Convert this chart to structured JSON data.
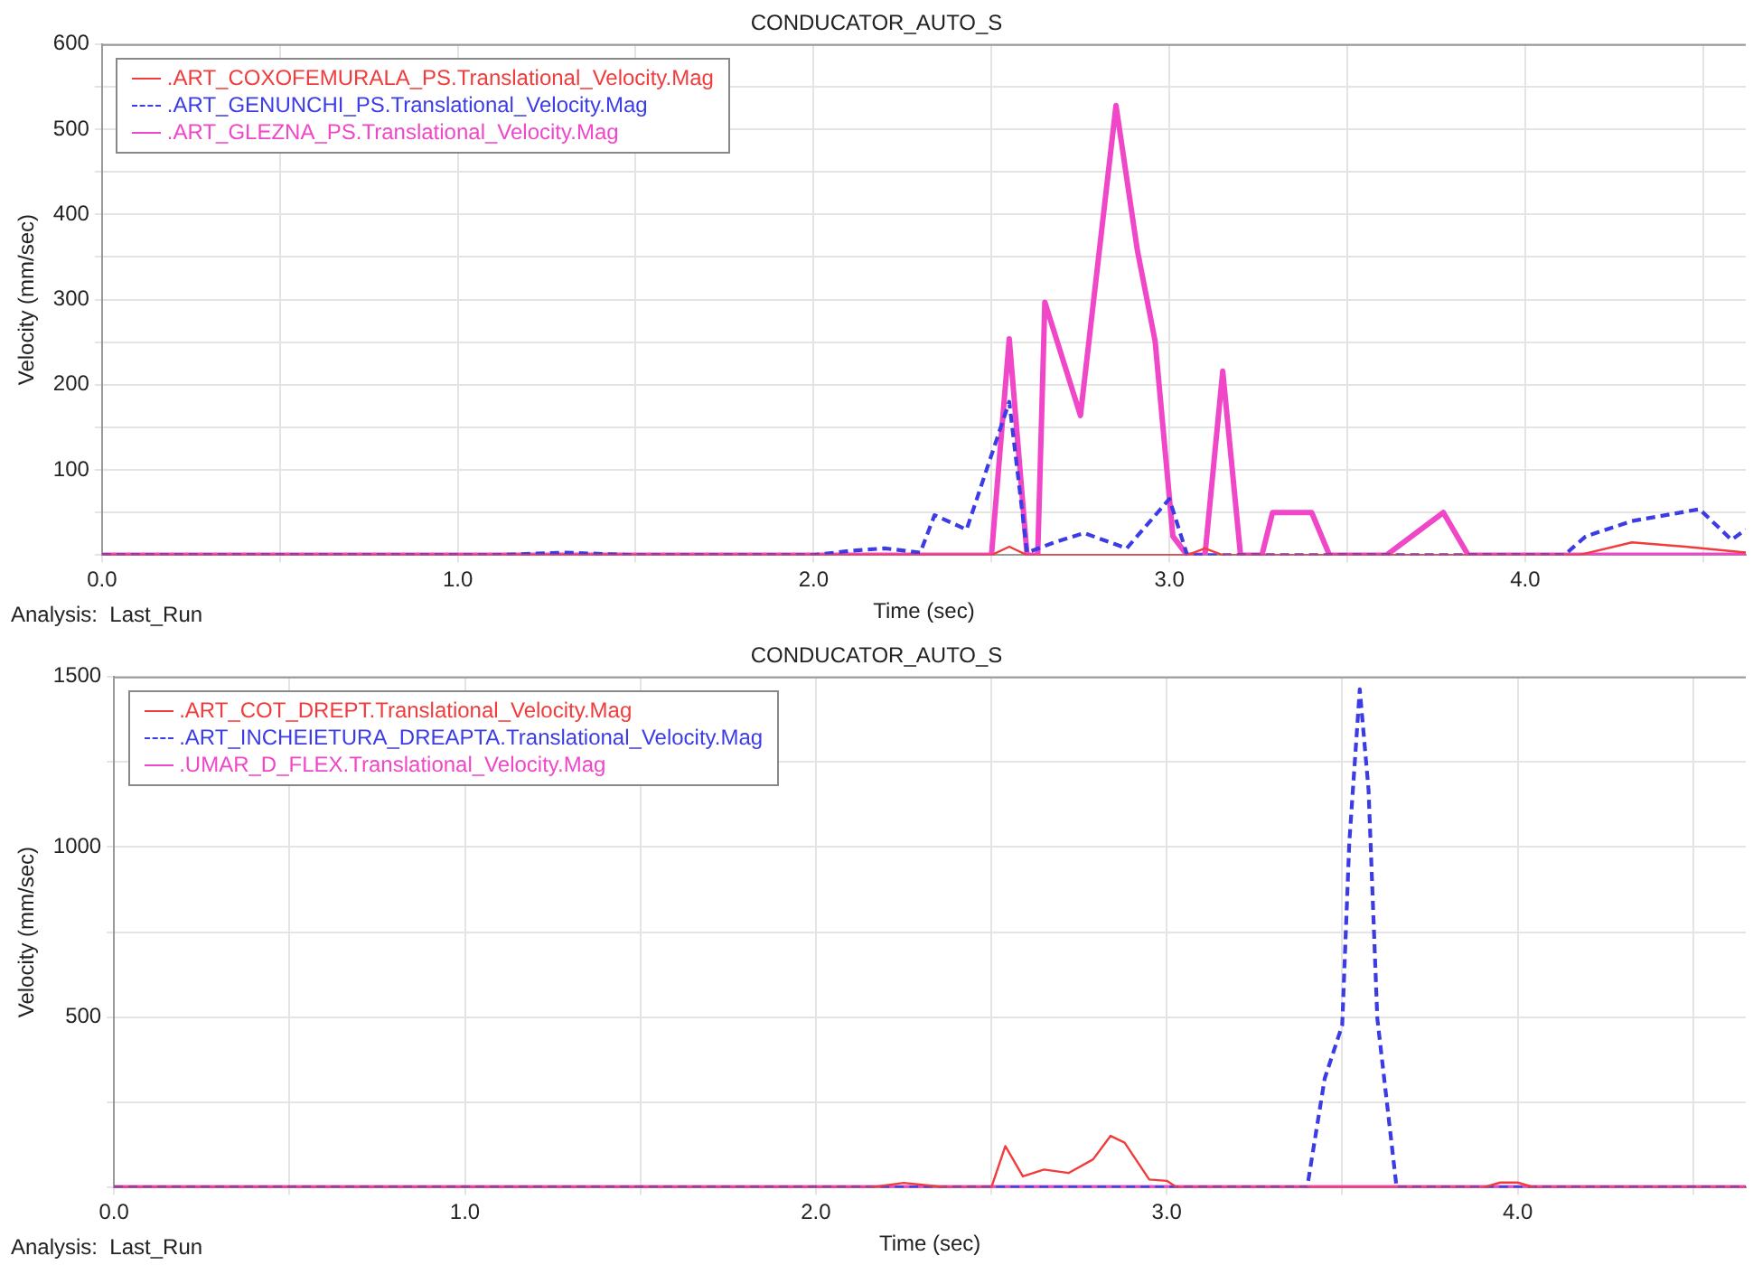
{
  "chart_data": [
    {
      "type": "line",
      "title": "CONDUCATOR_AUTO_S",
      "xlabel": "Time (sec)",
      "ylabel": "Velocity (mm/sec)",
      "annotations": [
        "Analysis:  Last_Run"
      ],
      "xlim": [
        0,
        4.62
      ],
      "xticks": [
        {
          "value": 0,
          "label": "0.0"
        },
        {
          "value": 0.5,
          "label": null
        },
        {
          "value": 1,
          "label": "1.0"
        },
        {
          "value": 1.5,
          "label": null
        },
        {
          "value": 2,
          "label": "2.0"
        },
        {
          "value": 2.5,
          "label": null
        },
        {
          "value": 3,
          "label": "3.0"
        },
        {
          "value": 3.5,
          "label": null
        },
        {
          "value": 4,
          "label": "4.0"
        },
        {
          "value": 4.5,
          "label": null
        }
      ],
      "ylim": [
        0,
        600
      ],
      "yticks": [
        {
          "value": 0,
          "label": null
        },
        {
          "value": 50,
          "label": null
        },
        100,
        {
          "value": 150,
          "label": null
        },
        200,
        {
          "value": 250,
          "label": null
        },
        300,
        {
          "value": 350,
          "label": null
        },
        400,
        {
          "value": 450,
          "label": null
        },
        500,
        {
          "value": 550,
          "label": null
        },
        600
      ],
      "grid": true,
      "legend": "top left",
      "marker": "none",
      "series": [
        {
          "name": ".ART_COXOFEMURALA_PS.Translational_Velocity.Mag",
          "color": "#f03c3c",
          "line_style": "solid",
          "x": [
            0,
            2.5,
            2.55,
            2.6,
            3.05,
            3.1,
            3.15,
            4.15,
            4.3,
            4.45,
            4.62
          ],
          "values": [
            0,
            0,
            10,
            0,
            0,
            8,
            0,
            0,
            15,
            10,
            3
          ]
        },
        {
          "name": ".ART_GENUNCHI_PS.Translational_Velocity.Mag",
          "color": "#3c3ce6",
          "line_style": "dashed",
          "x": [
            0,
            1.1,
            1.3,
            1.5,
            2.0,
            2.1,
            2.2,
            2.3,
            2.34,
            2.43,
            2.55,
            2.6,
            2.67,
            2.76,
            2.88,
            3.0,
            3.05,
            4.11,
            4.17,
            4.3,
            4.49,
            4.58,
            4.62
          ],
          "values": [
            0,
            0,
            3,
            0,
            0,
            5,
            8,
            3,
            47,
            30,
            180,
            3,
            14,
            26,
            8,
            66,
            0,
            0,
            22,
            40,
            54,
            18,
            30
          ]
        },
        {
          "name": ".ART_GLEZNA_PS.Translational_Velocity.Mag",
          "color": "#f046c8",
          "line_style": "solid",
          "x": [
            0,
            2.5,
            2.55,
            2.6,
            2.63,
            2.65,
            2.75,
            2.85,
            2.91,
            2.96,
            3.01,
            3.05,
            3.1,
            3.15,
            3.2,
            3.26,
            3.29,
            3.4,
            3.45,
            3.61,
            3.77,
            3.84,
            4.62
          ],
          "values": [
            0,
            0,
            254,
            0,
            0,
            297,
            164,
            528,
            358,
            251,
            22,
            0,
            0,
            216,
            0,
            0,
            50,
            50,
            0,
            0,
            50,
            0,
            0
          ]
        }
      ]
    },
    {
      "type": "line",
      "title": "CONDUCATOR_AUTO_S",
      "xlabel": "Time (sec)",
      "ylabel": "Velocity (mm/sec)",
      "annotations": [
        "Analysis:  Last_Run"
      ],
      "xlim": [
        0,
        4.65
      ],
      "xticks": [
        {
          "value": 0,
          "label": "0.0"
        },
        {
          "value": 0.5,
          "label": null
        },
        {
          "value": 1,
          "label": "1.0"
        },
        {
          "value": 1.5,
          "label": null
        },
        {
          "value": 2,
          "label": "2.0"
        },
        {
          "value": 2.5,
          "label": null
        },
        {
          "value": 3,
          "label": "3.0"
        },
        {
          "value": 3.5,
          "label": null
        },
        {
          "value": 4,
          "label": "4.0"
        },
        {
          "value": 4.5,
          "label": null
        }
      ],
      "ylim": [
        0,
        1500
      ],
      "yticks": [
        {
          "value": 0,
          "label": null
        },
        {
          "value": 250,
          "label": null
        },
        500,
        {
          "value": 750,
          "label": null
        },
        1000,
        {
          "value": 1250,
          "label": null
        },
        1500
      ],
      "grid": true,
      "legend": "top left",
      "marker": "none",
      "series": [
        {
          "name": ".ART_COT_DREPT.Translational_Velocity.Mag",
          "color": "#f03c3c",
          "line_style": "solid",
          "x": [
            0,
            2.15,
            2.25,
            2.38,
            2.5,
            2.54,
            2.59,
            2.65,
            2.72,
            2.79,
            2.84,
            2.88,
            2.95,
            3.0,
            3.03,
            3.9,
            3.95,
            4.0,
            4.05,
            4.65
          ],
          "values": [
            0,
            0,
            14,
            0,
            0,
            122,
            33,
            53,
            43,
            83,
            152,
            132,
            24,
            20,
            0,
            0,
            15,
            15,
            0,
            0
          ]
        },
        {
          "name": ".ART_INCHEIETURA_DREAPTA.Translational_Velocity.Mag",
          "color": "#3c3ce6",
          "line_style": "dashed",
          "x": [
            0,
            3.4,
            3.45,
            3.5,
            3.52,
            3.55,
            3.575,
            3.6,
            3.655,
            4.65
          ],
          "values": [
            0,
            0,
            320,
            477,
            1010,
            1463,
            1168,
            497,
            0,
            0
          ]
        },
        {
          "name": ".UMAR_D_FLEX.Translational_Velocity.Mag",
          "color": "#f046c8",
          "line_style": "solid",
          "x": [
            0,
            4.65
          ],
          "values": [
            0,
            0
          ]
        }
      ]
    }
  ]
}
